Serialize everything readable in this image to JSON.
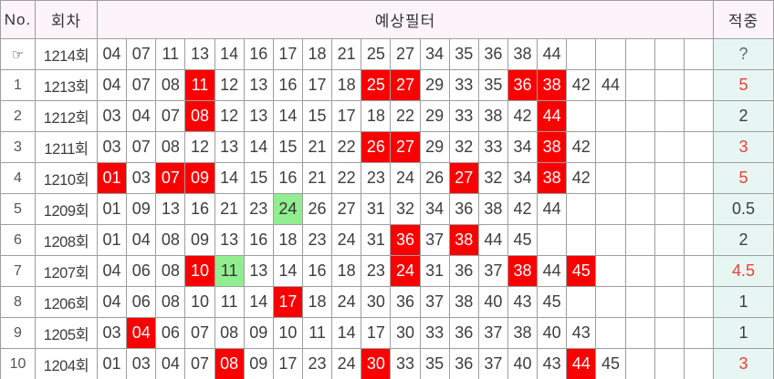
{
  "colors": {
    "highlight_red": "#fb0000",
    "highlight_green": "#90ee90",
    "header_bg": "#fdf4fa",
    "hit_col_bg": "#e8f6f3",
    "hit_red_text": "#ee4036",
    "grid_line": "#9e9e9e"
  },
  "table": {
    "headers": {
      "no": "No.",
      "round": "회차",
      "filter": "예상필터",
      "hit": "적중"
    },
    "number_columns": 21,
    "pointer_icon": "☞",
    "rows": [
      {
        "no": "☞",
        "is_pointer": true,
        "round": "1214회",
        "numbers": [
          "04",
          "07",
          "11",
          "13",
          "14",
          "16",
          "17",
          "18",
          "21",
          "25",
          "27",
          "34",
          "35",
          "36",
          "38",
          "44"
        ],
        "red": [],
        "green": [],
        "hit": "?",
        "hit_color": "gray"
      },
      {
        "no": "1",
        "round": "1213회",
        "numbers": [
          "04",
          "07",
          "08",
          "11",
          "12",
          "13",
          "16",
          "17",
          "18",
          "25",
          "27",
          "29",
          "33",
          "35",
          "36",
          "38",
          "42",
          "44"
        ],
        "red": [
          "11",
          "25",
          "27",
          "36",
          "38"
        ],
        "green": [],
        "hit": "5",
        "hit_color": "red"
      },
      {
        "no": "2",
        "round": "1212회",
        "numbers": [
          "03",
          "04",
          "07",
          "08",
          "12",
          "13",
          "14",
          "15",
          "17",
          "18",
          "22",
          "29",
          "33",
          "38",
          "42",
          "44"
        ],
        "red": [
          "08",
          "44"
        ],
        "green": [],
        "hit": "2",
        "hit_color": "black"
      },
      {
        "no": "3",
        "round": "1211회",
        "numbers": [
          "03",
          "07",
          "08",
          "12",
          "13",
          "14",
          "15",
          "21",
          "22",
          "26",
          "27",
          "29",
          "32",
          "33",
          "34",
          "38",
          "42"
        ],
        "red": [
          "26",
          "27",
          "38"
        ],
        "green": [],
        "hit": "3",
        "hit_color": "red"
      },
      {
        "no": "4",
        "round": "1210회",
        "numbers": [
          "01",
          "03",
          "07",
          "09",
          "14",
          "15",
          "16",
          "21",
          "22",
          "23",
          "24",
          "26",
          "27",
          "32",
          "34",
          "38",
          "42"
        ],
        "red": [
          "01",
          "07",
          "09",
          "27",
          "38"
        ],
        "green": [],
        "hit": "5",
        "hit_color": "red"
      },
      {
        "no": "5",
        "round": "1209회",
        "numbers": [
          "01",
          "09",
          "13",
          "16",
          "21",
          "23",
          "24",
          "26",
          "27",
          "31",
          "32",
          "34",
          "36",
          "38",
          "42",
          "44"
        ],
        "red": [],
        "green": [
          "24"
        ],
        "hit": "0.5",
        "hit_color": "black"
      },
      {
        "no": "6",
        "round": "1208회",
        "numbers": [
          "01",
          "04",
          "08",
          "09",
          "13",
          "16",
          "18",
          "23",
          "24",
          "31",
          "36",
          "37",
          "38",
          "44",
          "45"
        ],
        "red": [
          "36",
          "38"
        ],
        "green": [],
        "hit": "2",
        "hit_color": "black"
      },
      {
        "no": "7",
        "round": "1207회",
        "numbers": [
          "04",
          "06",
          "08",
          "10",
          "11",
          "13",
          "14",
          "16",
          "18",
          "23",
          "24",
          "31",
          "36",
          "37",
          "38",
          "44",
          "45"
        ],
        "red": [
          "10",
          "24",
          "38",
          "45"
        ],
        "green": [
          "11"
        ],
        "hit": "4.5",
        "hit_color": "red"
      },
      {
        "no": "8",
        "round": "1206회",
        "numbers": [
          "04",
          "06",
          "08",
          "10",
          "11",
          "14",
          "17",
          "18",
          "24",
          "30",
          "36",
          "37",
          "38",
          "40",
          "43",
          "45"
        ],
        "red": [
          "17"
        ],
        "green": [],
        "hit": "1",
        "hit_color": "black"
      },
      {
        "no": "9",
        "round": "1205회",
        "numbers": [
          "03",
          "04",
          "06",
          "07",
          "08",
          "09",
          "10",
          "11",
          "14",
          "17",
          "30",
          "33",
          "36",
          "37",
          "38",
          "40",
          "43"
        ],
        "red": [
          "04"
        ],
        "green": [],
        "hit": "1",
        "hit_color": "black"
      },
      {
        "no": "10",
        "round": "1204회",
        "numbers": [
          "01",
          "03",
          "04",
          "07",
          "08",
          "09",
          "17",
          "23",
          "24",
          "30",
          "33",
          "35",
          "36",
          "37",
          "40",
          "43",
          "44",
          "45"
        ],
        "red": [
          "08",
          "30",
          "44"
        ],
        "green": [],
        "hit": "3",
        "hit_color": "red"
      }
    ]
  }
}
